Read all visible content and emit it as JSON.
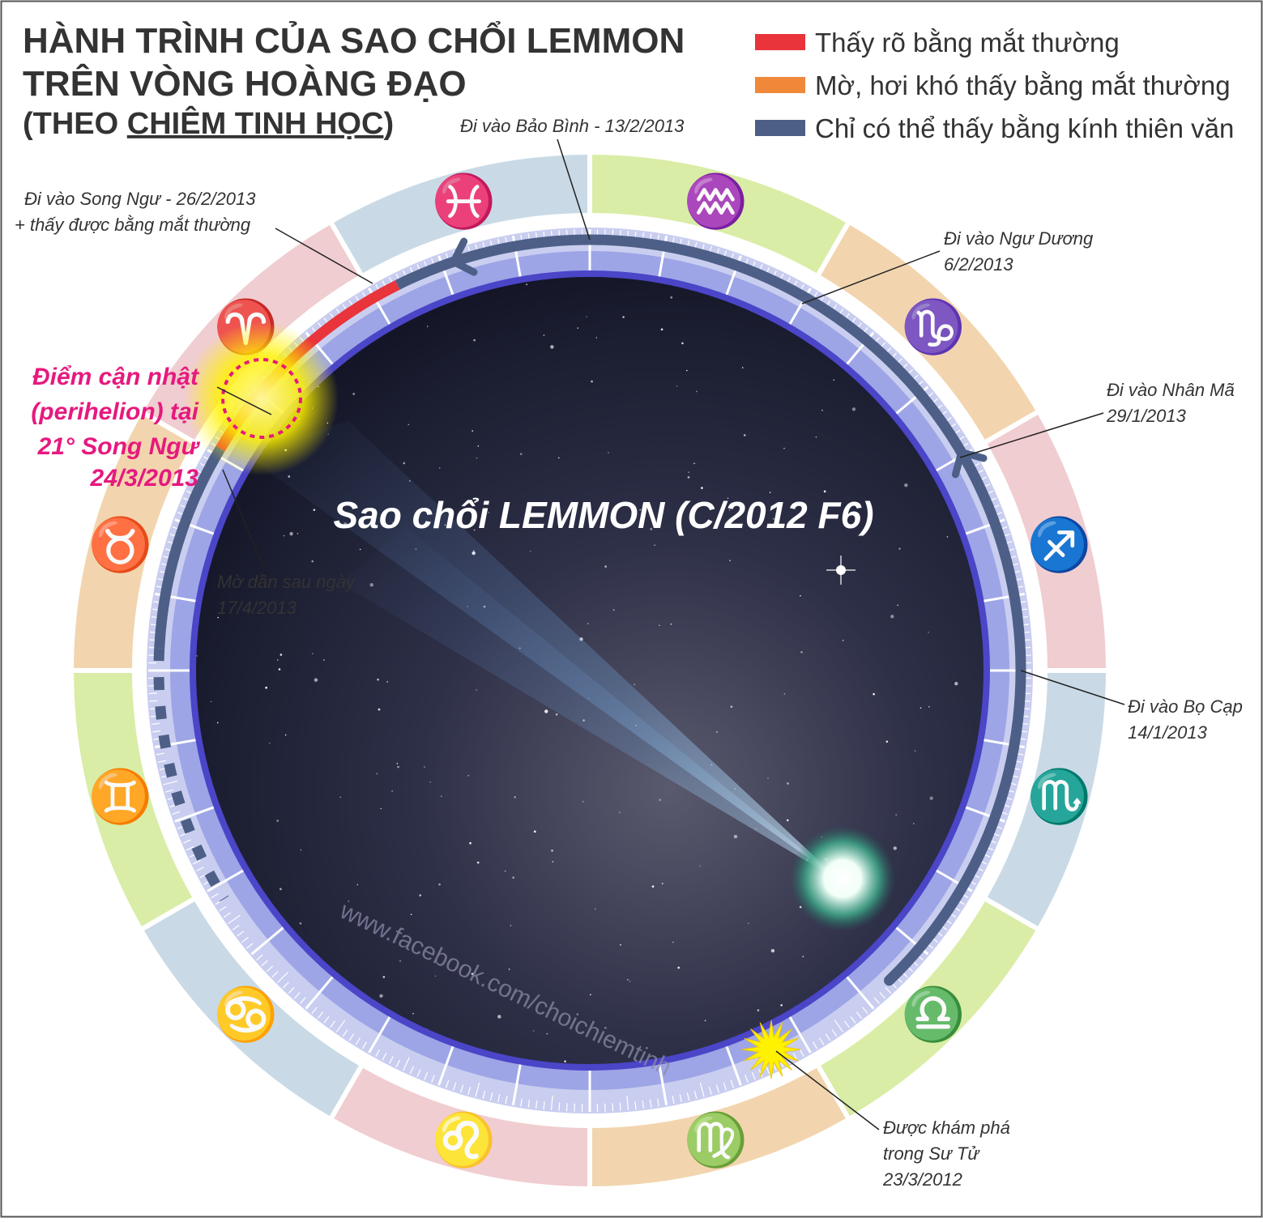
{
  "header": {
    "title_line1": "HÀNH TRÌNH CỦA SAO CHỔI LEMMON",
    "title_line2": "TRÊN VÒNG HOÀNG ĐẠO",
    "subtitle_pre": "(THEO ",
    "subtitle_link": "CHIÊM TINH HỌC",
    "subtitle_post": ")"
  },
  "legend": [
    {
      "label": "Thấy rõ bằng mắt thường",
      "color": "#e8343a"
    },
    {
      "label": "Mờ, hơi khó thấy bằng mắt thường",
      "color": "#f0883a"
    },
    {
      "label": "Chỉ có thể thấy bằng kính thiên văn",
      "color": "#4d5f86"
    }
  ],
  "center_label": "Sao chổi LEMMON (C/2012 F6)",
  "watermark": "www.facebook.com/choichiemtinh",
  "annotations": {
    "aquarius_entry": "Đi vào Bảo Bình - 13/2/2013",
    "pisces_entry_l1": "Đi vào Song Ngư - 26/2/2013",
    "pisces_entry_l2": "+ thấy được bằng mắt thường",
    "capricorn_entry_l1": "Đi vào Ngư Dương",
    "capricorn_entry_l2": "6/2/2013",
    "sagittarius_entry_l1": "Đi vào Nhân Mã",
    "sagittarius_entry_l2": "29/1/2013",
    "scorpio_entry_l1": "Đi vào Bọ Cạp",
    "scorpio_entry_l2": "14/1/2013",
    "discovery_l1": "Được khám phá",
    "discovery_l2": "trong Sư Tử",
    "discovery_l3": "23/3/2012",
    "fade_l1": "Mờ dần sau ngày",
    "fade_l2": "17/4/2013",
    "perihelion_l1": "Điểm cận nhật",
    "perihelion_l2": "(perihelion) tại",
    "perihelion_l3": "21° Song Ngư",
    "perihelion_l4": "24/3/2013"
  },
  "zodiac": [
    {
      "name": "aquarius",
      "glyph": "♒",
      "color": "#1a9a4a",
      "bg": "#d9eda6"
    },
    {
      "name": "capricorn",
      "glyph": "♑",
      "color": "#f0883a",
      "bg": "#f2d5ae"
    },
    {
      "name": "sagittarius",
      "glyph": "♐",
      "color": "#e8343a",
      "bg": "#f0cdd0"
    },
    {
      "name": "scorpio",
      "glyph": "♏",
      "color": "#2b3a8c",
      "bg": "#c9dae6"
    },
    {
      "name": "libra",
      "glyph": "♎",
      "color": "#1a9a4a",
      "bg": "#d9eda6"
    },
    {
      "name": "virgo",
      "glyph": "♍",
      "color": "#f0883a",
      "bg": "#f2d5ae"
    },
    {
      "name": "leo",
      "glyph": "♌",
      "color": "#e8343a",
      "bg": "#f0cdd0"
    },
    {
      "name": "cancer",
      "glyph": "♋",
      "color": "#2b3a8c",
      "bg": "#c9dae6"
    },
    {
      "name": "gemini",
      "glyph": "♊",
      "color": "#1a9a4a",
      "bg": "#d9eda6"
    },
    {
      "name": "taurus",
      "glyph": "♉",
      "color": "#f0883a",
      "bg": "#f2d5ae"
    },
    {
      "name": "aries",
      "glyph": "♈",
      "color": "#e8343a",
      "bg": "#f0cdd0"
    },
    {
      "name": "pisces",
      "glyph": "♓",
      "color": "#2b3a8c",
      "bg": "#c9dae6"
    }
  ]
}
